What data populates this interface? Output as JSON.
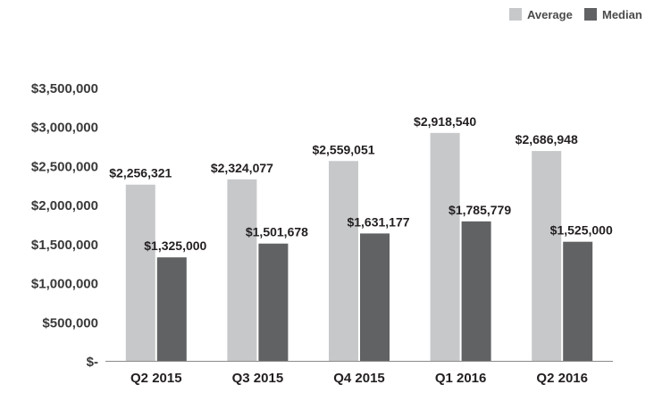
{
  "chart_data": {
    "type": "bar",
    "title": "",
    "xlabel": "",
    "ylabel": "",
    "categories": [
      "Q2 2015",
      "Q3 2015",
      "Q4 2015",
      "Q1 2016",
      "Q2 2016"
    ],
    "series": [
      {
        "name": "Average",
        "color": "#c6c8ca",
        "values": [
          2256321,
          2324077,
          2559051,
          2918540,
          2686948
        ],
        "labels": [
          "$2,256,321",
          "$2,324,077",
          "$2,559,051",
          "$2,918,540",
          "$2,686,948"
        ]
      },
      {
        "name": "Median",
        "color": "#616264",
        "values": [
          1325000,
          1501678,
          1631177,
          1785779,
          1525000
        ],
        "labels": [
          "$1,325,000",
          "$1,501,678",
          "$1,631,177",
          "$1,785,779",
          "$1,525,000"
        ]
      }
    ],
    "ylim": [
      0,
      3500000
    ],
    "yticks": [
      0,
      500000,
      1000000,
      1500000,
      2000000,
      2500000,
      3000000,
      3500000
    ],
    "ytick_labels": [
      "$-",
      "$500,000",
      "$1,000,000",
      "$1,500,000",
      "$2,000,000",
      "$2,500,000",
      "$3,000,000",
      "$3,500,000"
    ],
    "grid": false,
    "legend_position": "top-right"
  }
}
